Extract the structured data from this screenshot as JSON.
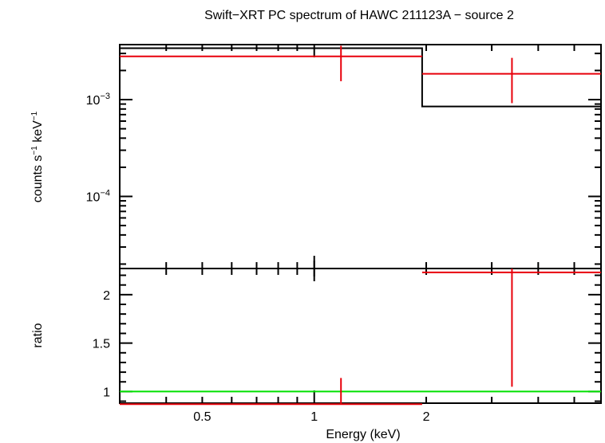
{
  "title": "Swift−XRT PC spectrum of HAWC 211123A − source 2",
  "colors": {
    "data": "#e8000b",
    "model": "#000000",
    "unity": "#00e000",
    "frame": "#000000"
  },
  "chart_data": [
    {
      "type": "scatter",
      "panel": "spectrum",
      "ylabel": {
        "base": "counts s",
        "exp1": "−1",
        "mid": " keV",
        "exp2": "−1"
      },
      "yscale": "log",
      "ylim": [
        1.8e-05,
        0.0037
      ],
      "yticks": [
        {
          "value": 0.001,
          "base": "10",
          "exp": "−3"
        },
        {
          "value": 0.0001,
          "base": "10",
          "exp": "−4"
        }
      ],
      "xscale": "log",
      "xlim": [
        0.3,
        5.9
      ],
      "series": [
        {
          "kind": "data",
          "points": [
            {
              "x": 1.18,
              "xlo": 0.3,
              "xhi": 1.95,
              "y": 0.0028,
              "ylo": 0.00155,
              "yhi": 0.0036
            },
            {
              "x": 3.4,
              "xlo": 1.95,
              "xhi": 5.9,
              "y": 0.00185,
              "ylo": 0.00092,
              "yhi": 0.0027
            }
          ]
        },
        {
          "kind": "model-step",
          "steps": [
            {
              "xlo": 0.3,
              "xhi": 1.95,
              "y": 0.0034
            },
            {
              "xlo": 1.95,
              "xhi": 5.9,
              "y": 0.00085
            }
          ]
        }
      ]
    },
    {
      "type": "scatter",
      "panel": "ratio",
      "ylabel": "ratio",
      "yscale": "linear",
      "ylim": [
        0.88,
        2.27
      ],
      "yticks": [
        {
          "value": 1,
          "label": "1"
        },
        {
          "value": 1.5,
          "label": "1.5"
        },
        {
          "value": 2,
          "label": "2"
        }
      ],
      "xscale": "log",
      "xlim": [
        0.3,
        5.9
      ],
      "xlabel": "Energy (keV)",
      "xticks": [
        {
          "value": 0.5,
          "label": "0.5"
        },
        {
          "value": 1,
          "label": "1"
        },
        {
          "value": 2,
          "label": "2"
        }
      ],
      "reference_line": 1,
      "series": [
        {
          "kind": "data",
          "points": [
            {
              "x": 1.18,
              "xlo": 0.3,
              "xhi": 1.95,
              "y": 0.87,
              "ylo": 0.87,
              "yhi": 1.14
            },
            {
              "x": 3.4,
              "xlo": 1.95,
              "xhi": 5.9,
              "y": 2.23,
              "ylo": 1.05,
              "yhi": 2.27
            }
          ]
        }
      ]
    }
  ]
}
